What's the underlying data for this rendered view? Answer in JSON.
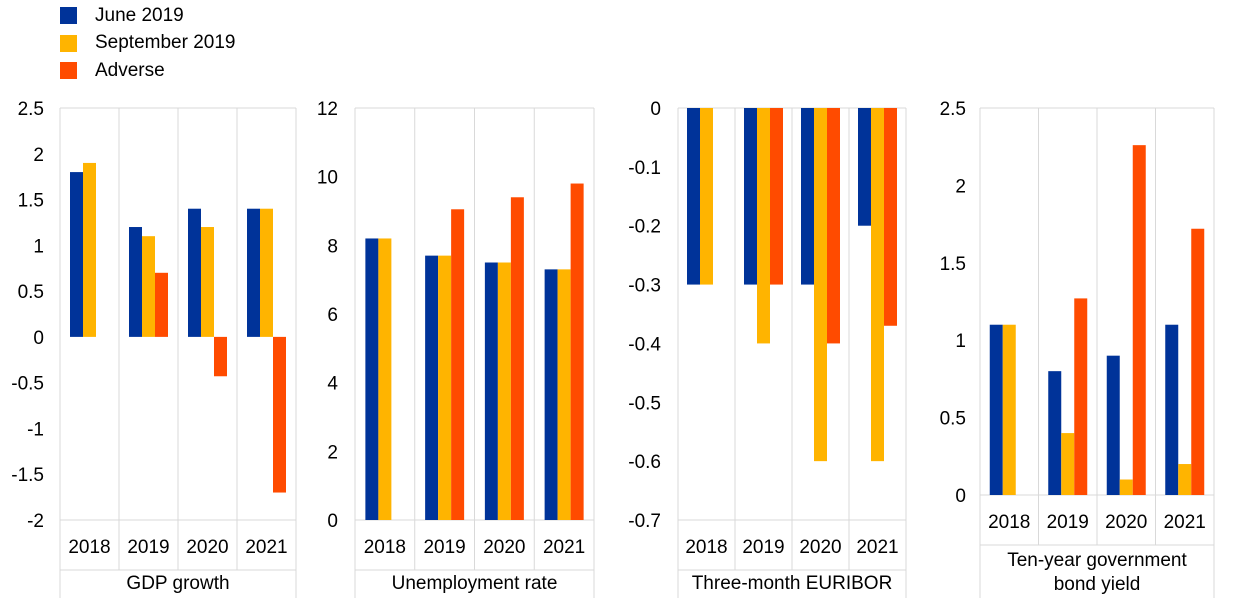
{
  "legend": [
    {
      "label": "June 2019",
      "color": "#003399"
    },
    {
      "label": "September 2019",
      "color": "#FFB400"
    },
    {
      "label": "Adverse",
      "color": "#FF4B00"
    }
  ],
  "chart_data": [
    {
      "type": "bar",
      "title": "GDP growth",
      "title_lines": [
        "GDP growth"
      ],
      "categories": [
        "2018",
        "2019",
        "2020",
        "2021"
      ],
      "series": [
        {
          "name": "June 2019",
          "values": [
            1.8,
            1.2,
            1.4,
            1.4
          ]
        },
        {
          "name": "September 2019",
          "values": [
            1.9,
            1.1,
            1.2,
            1.4
          ]
        },
        {
          "name": "Adverse",
          "values": [
            null,
            0.7,
            -0.43,
            -1.7
          ]
        }
      ],
      "ylim": [
        -2,
        2.5
      ],
      "yticks": [
        2.5,
        2,
        1.5,
        1,
        0.5,
        0,
        -0.5,
        -1,
        -1.5,
        -2
      ],
      "ytick_labels": [
        "2.5",
        "2",
        "1.5",
        "1",
        "0.5",
        "0",
        "-0.5",
        "-1",
        "-1.5",
        "-2"
      ],
      "category_axis": "bottom"
    },
    {
      "type": "bar",
      "title": "Unemployment rate",
      "title_lines": [
        "Unemployment rate"
      ],
      "categories": [
        "2018",
        "2019",
        "2020",
        "2021"
      ],
      "series": [
        {
          "name": "June 2019",
          "values": [
            8.2,
            7.7,
            7.5,
            7.3
          ]
        },
        {
          "name": "September 2019",
          "values": [
            8.2,
            7.7,
            7.5,
            7.3
          ]
        },
        {
          "name": "Adverse",
          "values": [
            null,
            9.05,
            9.4,
            9.8
          ]
        }
      ],
      "ylim": [
        0,
        12
      ],
      "yticks": [
        12,
        10,
        8,
        6,
        4,
        2,
        0
      ],
      "ytick_labels": [
        "12",
        "10",
        "8",
        "6",
        "4",
        "2",
        "0"
      ],
      "category_axis": "bottom"
    },
    {
      "type": "bar",
      "title": "Three-month EURIBOR",
      "title_lines": [
        "Three-month EURIBOR"
      ],
      "categories": [
        "2018",
        "2019",
        "2020",
        "2021"
      ],
      "series": [
        {
          "name": "June 2019",
          "values": [
            -0.3,
            -0.3,
            -0.3,
            -0.2
          ]
        },
        {
          "name": "September 2019",
          "values": [
            -0.3,
            -0.4,
            -0.6,
            -0.6
          ]
        },
        {
          "name": "Adverse",
          "values": [
            null,
            -0.3,
            -0.4,
            -0.37
          ]
        }
      ],
      "ylim": [
        -0.7,
        0
      ],
      "yticks": [
        0,
        -0.1,
        -0.2,
        -0.3,
        -0.4,
        -0.5,
        -0.6,
        -0.7
      ],
      "ytick_labels": [
        "0",
        "-0.1",
        "-0.2",
        "-0.3",
        "-0.4",
        "-0.5",
        "-0.6",
        "-0.7"
      ],
      "category_axis": "bottom"
    },
    {
      "type": "bar",
      "title": "Ten-year government bond yield",
      "title_lines": [
        "Ten-year government",
        "bond yield"
      ],
      "categories": [
        "2018",
        "2019",
        "2020",
        "2021"
      ],
      "series": [
        {
          "name": "June 2019",
          "values": [
            1.1,
            0.8,
            0.9,
            1.1
          ]
        },
        {
          "name": "September 2019",
          "values": [
            1.1,
            0.4,
            0.1,
            0.2
          ]
        },
        {
          "name": "Adverse",
          "values": [
            null,
            1.27,
            2.26,
            1.72
          ]
        }
      ],
      "ylim": [
        0,
        2.5
      ],
      "yticks": [
        2.5,
        2,
        1.5,
        1,
        0.5,
        0
      ],
      "ytick_labels": [
        "2.5",
        "2",
        "1.5",
        "1",
        "0.5",
        "0"
      ],
      "category_axis": "bottom"
    }
  ]
}
